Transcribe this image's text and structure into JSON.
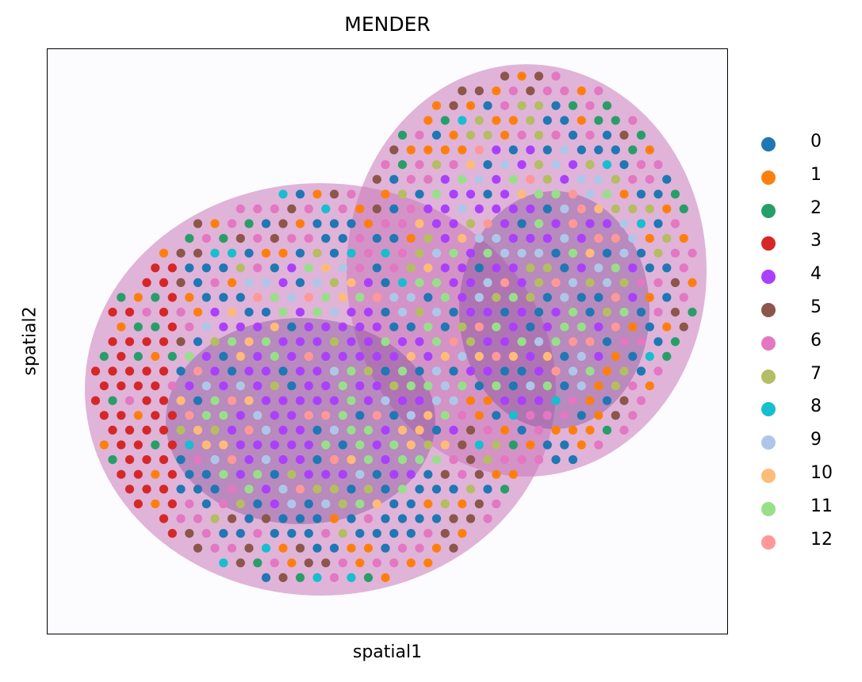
{
  "chart_data": {
    "type": "scatter",
    "title": "MENDER",
    "xlabel": "spatial1",
    "ylabel": "spatial2",
    "grid": false,
    "axis_ticks": false,
    "legend_position": "right",
    "background": "tissue H&E image (pink/purple stain)",
    "legend": [
      {
        "label": "0",
        "color": "#1f77b4"
      },
      {
        "label": "1",
        "color": "#ff7f0e"
      },
      {
        "label": "2",
        "color": "#279e68"
      },
      {
        "label": "3",
        "color": "#d62728"
      },
      {
        "label": "4",
        "color": "#aa40fc"
      },
      {
        "label": "5",
        "color": "#8c564b"
      },
      {
        "label": "6",
        "color": "#e377c2"
      },
      {
        "label": "7",
        "color": "#b5bd61"
      },
      {
        "label": "8",
        "color": "#17becf"
      },
      {
        "label": "9",
        "color": "#aec7e8"
      },
      {
        "label": "10",
        "color": "#ffbb78"
      },
      {
        "label": "11",
        "color": "#98df8a"
      },
      {
        "label": "12",
        "color": "#ff9896"
      }
    ],
    "region_notes": {
      "left_edge_dominant_clusters": [
        "3",
        "2"
      ],
      "inner_bands_dominant_clusters": [
        "0",
        "1",
        "6"
      ],
      "core_dominant_clusters": [
        "4",
        "9",
        "11",
        "7"
      ]
    }
  }
}
